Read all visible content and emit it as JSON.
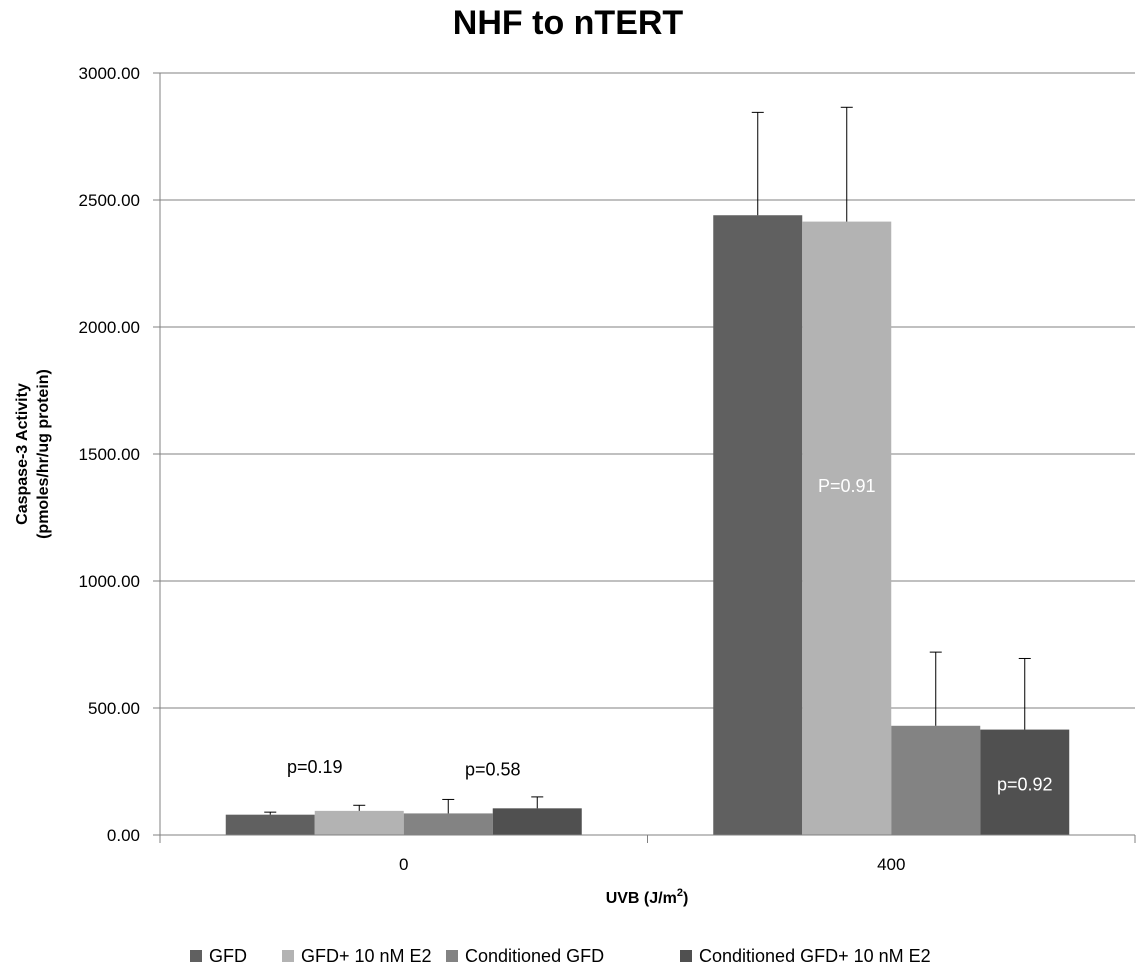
{
  "chart_data": {
    "type": "bar",
    "title": "NHF to nTERT",
    "xlabel": "UVB (J/m",
    "xlabel_sup": "2",
    "xlabel_suffix": ")",
    "ylabel_line1": "Caspase-3  Activity",
    "ylabel_line2": "(pmoles/hr/ug protein)",
    "ylim": [
      0,
      3000
    ],
    "yticks": [
      "0.00",
      "500.00",
      "1000.00",
      "1500.00",
      "2000.00",
      "2500.00",
      "3000.00"
    ],
    "categories": [
      "0",
      "400"
    ],
    "grid": true,
    "legend_position": "bottom",
    "series": [
      {
        "name": "GFD",
        "color": "#606060",
        "values": [
          80,
          2440
        ],
        "errors": [
          10,
          405
        ]
      },
      {
        "name": "GFD+ 10 nM E2",
        "color": "#b3b3b3",
        "values": [
          95,
          2415
        ],
        "errors": [
          22,
          450
        ]
      },
      {
        "name": "Conditioned GFD",
        "color": "#838383",
        "values": [
          85,
          430
        ],
        "errors": [
          55,
          290
        ]
      },
      {
        "name": "Conditioned GFD+ 10 nM E2",
        "color": "#505050",
        "values": [
          105,
          415
        ],
        "errors": [
          45,
          280
        ]
      }
    ],
    "annotations": [
      {
        "text": "p=0.19",
        "category": 0,
        "value": 245,
        "series_pos": 0.5,
        "color": "#000000"
      },
      {
        "text": "p=0.58",
        "category": 0,
        "value": 235,
        "series_pos": 2.5,
        "color": "#000000"
      },
      {
        "text": "P=0.91",
        "category": 1,
        "value": 1350,
        "series_pos": 1.0,
        "color": "#ffffff"
      },
      {
        "text": "p=0.92",
        "category": 1,
        "value": 175,
        "series_pos": 3.0,
        "color": "#ffffff"
      }
    ]
  }
}
